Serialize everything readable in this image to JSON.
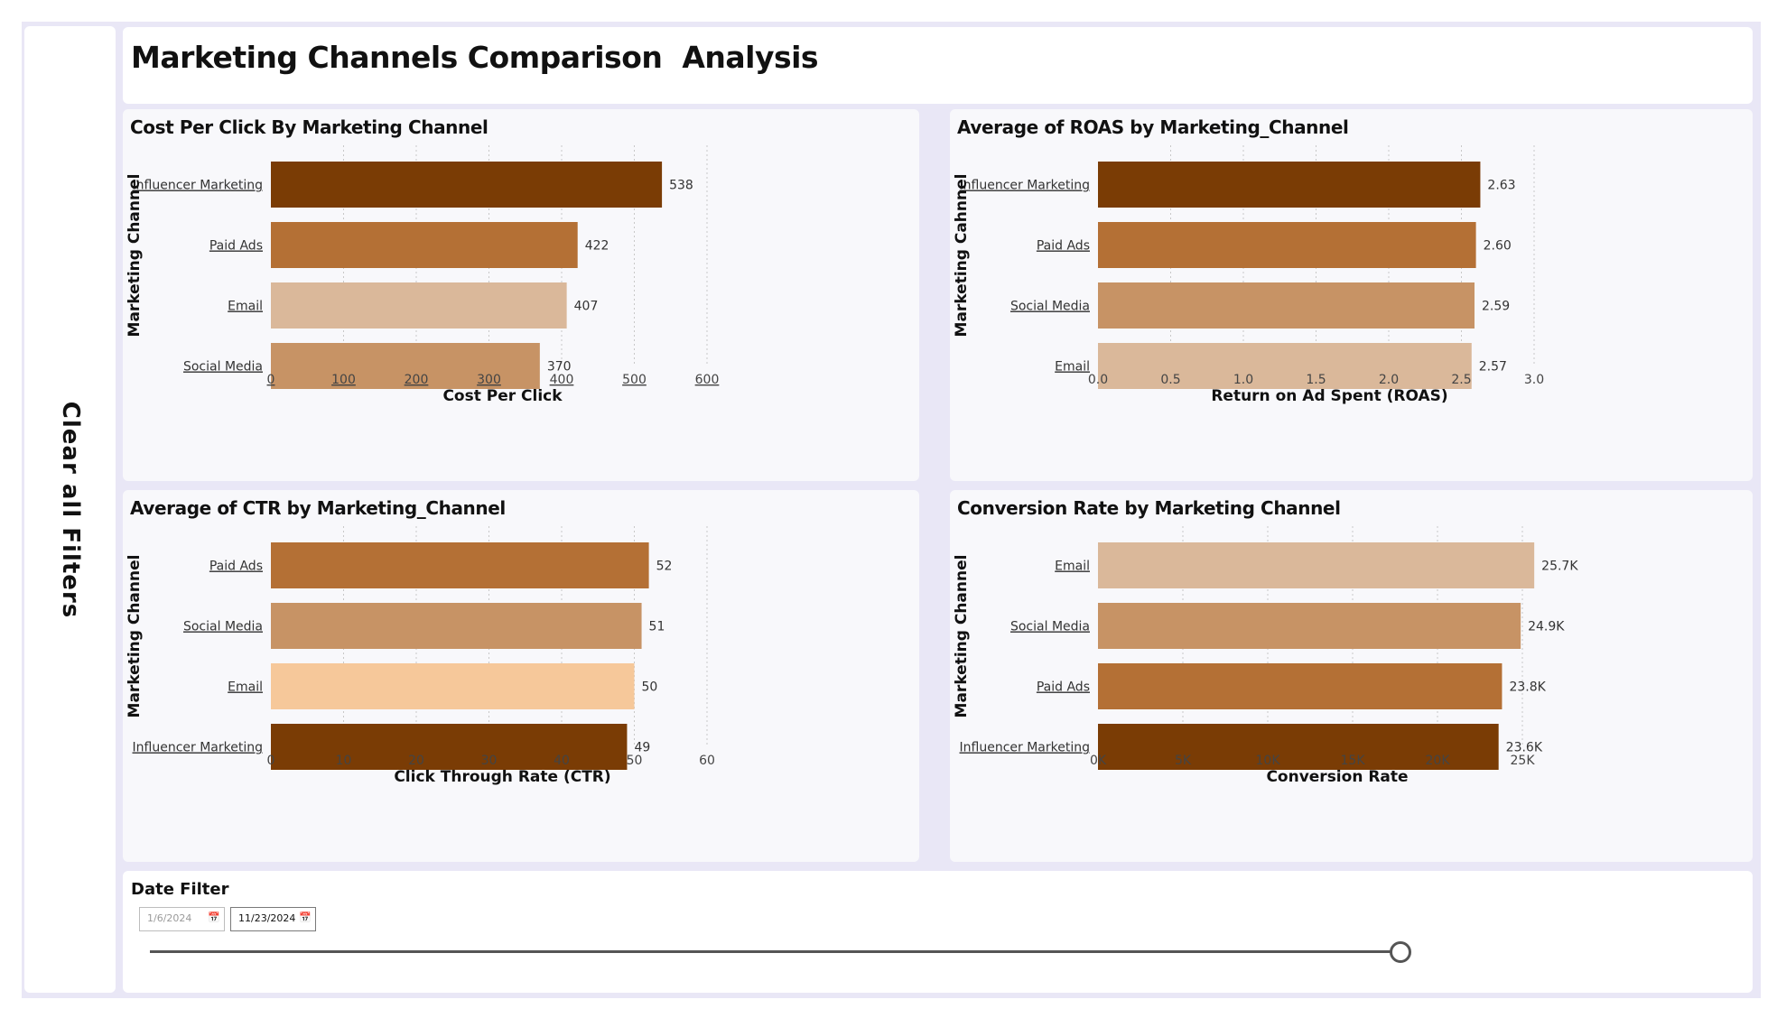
{
  "page_title": "Marketing Channels Comparison  Analysis",
  "clear_filters_label": "Clear all Filters",
  "colors": {
    "influencer": "#7a3c05",
    "paid_ads": "#b47035",
    "social_media": "#c79365",
    "email": "#dab89a",
    "email_ctr": "#f6c89a"
  },
  "charts": [
    {
      "id": "cpc",
      "title": "Cost Per Click By Marketing Channel",
      "ylabel": "Marketing Channel",
      "xlabel": "Cost Per Click",
      "ticks": [
        0,
        100,
        200,
        300,
        400,
        500,
        600
      ],
      "tick_labels": [
        "0",
        "100",
        "200",
        "300",
        "400",
        "500",
        "600"
      ],
      "underline_ticks": true,
      "bars": [
        {
          "label": "Influencer Marketing",
          "value": 538,
          "display": "538",
          "color_key": "influencer"
        },
        {
          "label": "Paid Ads",
          "value": 422,
          "display": "422",
          "color_key": "paid_ads"
        },
        {
          "label": "Email",
          "value": 407,
          "display": "407",
          "color_key": "email"
        },
        {
          "label": "Social Media",
          "value": 370,
          "display": "370",
          "color_key": "social_media"
        }
      ]
    },
    {
      "id": "roas",
      "title": "Average of ROAS by Marketing_Channel",
      "ylabel": "Marketing Cahnnel",
      "xlabel": "Return on Ad Spent (ROAS)",
      "ticks": [
        0,
        0.5,
        1,
        1.5,
        2,
        2.5,
        3
      ],
      "tick_labels": [
        "0.0",
        "0.5",
        "1.0",
        "1.5",
        "2.0",
        "2.5",
        "3.0"
      ],
      "underline_ticks": false,
      "bars": [
        {
          "label": "Influencer Marketing",
          "value": 2.63,
          "display": "2.63",
          "color_key": "influencer"
        },
        {
          "label": "Paid Ads",
          "value": 2.6,
          "display": "2.60",
          "color_key": "paid_ads"
        },
        {
          "label": "Social Media",
          "value": 2.59,
          "display": "2.59",
          "color_key": "social_media"
        },
        {
          "label": "Email",
          "value": 2.57,
          "display": "2.57",
          "color_key": "email"
        }
      ]
    },
    {
      "id": "ctr",
      "title": "Average of CTR by Marketing_Channel",
      "ylabel": "Marketing Channel",
      "xlabel": "Click Through Rate (CTR)",
      "ticks": [
        0,
        10,
        20,
        30,
        40,
        50,
        60
      ],
      "tick_labels": [
        "0",
        "10",
        "20",
        "30",
        "40",
        "50",
        "60"
      ],
      "underline_ticks": false,
      "bars": [
        {
          "label": "Paid Ads",
          "value": 52,
          "display": "52",
          "color_key": "paid_ads"
        },
        {
          "label": "Social Media",
          "value": 51,
          "display": "51",
          "color_key": "social_media"
        },
        {
          "label": "Email",
          "value": 50,
          "display": "50",
          "color_key": "email_ctr"
        },
        {
          "label": "Influencer Marketing",
          "value": 49,
          "display": "49",
          "color_key": "influencer"
        }
      ]
    },
    {
      "id": "conv",
      "title": "Conversion Rate by Marketing Channel",
      "ylabel": "Marketing Channel",
      "xlabel": "Conversion Rate",
      "ticks": [
        0,
        5000,
        10000,
        15000,
        20000,
        25000
      ],
      "tick_labels": [
        "0K",
        "5K",
        "10K",
        "15K",
        "20K",
        "25K"
      ],
      "underline_ticks": false,
      "bars": [
        {
          "label": "Email",
          "value": 25700,
          "display": "25.7K",
          "color_key": "email"
        },
        {
          "label": "Social Media",
          "value": 24900,
          "display": "24.9K",
          "color_key": "social_media"
        },
        {
          "label": "Paid Ads",
          "value": 23800,
          "display": "23.8K",
          "color_key": "paid_ads"
        },
        {
          "label": "Influencer Marketing",
          "value": 23600,
          "display": "23.6K",
          "color_key": "influencer"
        }
      ]
    }
  ],
  "date_filter": {
    "title": "Date Filter",
    "start": "1/6/2024",
    "end": "11/23/2024",
    "slider_position_fraction": 1.0
  }
}
